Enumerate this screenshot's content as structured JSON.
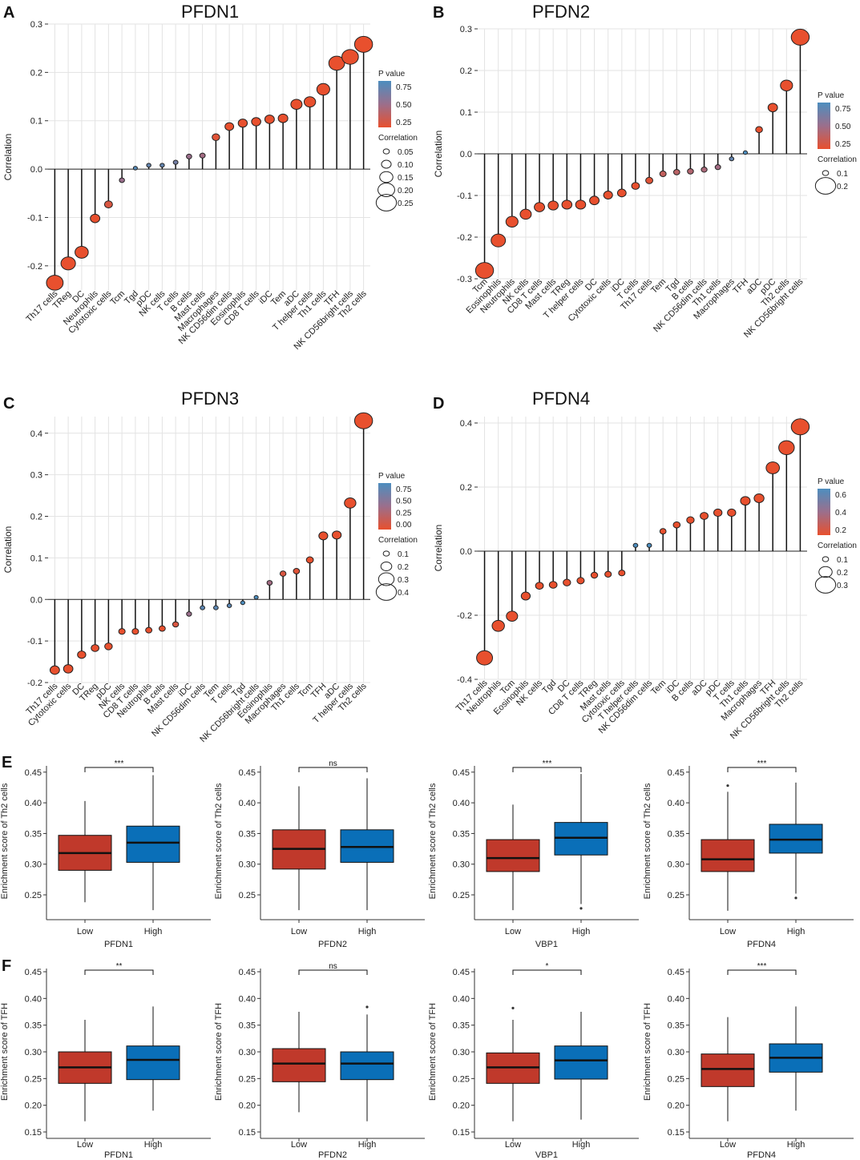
{
  "lollipops": [
    {
      "letter": "A",
      "title": "PFDN1",
      "ylabel": "Correlation",
      "ylim": [
        -0.25,
        0.3
      ],
      "yticks": [
        -0.2,
        -0.1,
        0.0,
        0.1,
        0.2,
        0.3
      ],
      "legend": {
        "p_title": "P value",
        "p_ticks": [
          "0.75",
          "0.50",
          "0.25"
        ],
        "c_title": "Correlation",
        "c_ticks": [
          "0.05",
          "0.10",
          "0.15",
          "0.20",
          "0.25"
        ]
      },
      "chart_data": {
        "type": "lollipop",
        "categories": [
          "Th17 cells",
          "TReg",
          "DC",
          "Neutrophils",
          "Cytotoxic cells",
          "Tcm",
          "Tgd",
          "pDC",
          "NK cells",
          "T cells",
          "B cells",
          "Mast cells",
          "Macrophages",
          "NK CD56dim cells",
          "Eosinophils",
          "CD8 T cells",
          "iDC",
          "Tem",
          "aDC",
          "T helper cells",
          "Th1 cells",
          "TFH",
          "NK CD56bright cells",
          "Th2 cells"
        ],
        "values": [
          -0.235,
          -0.195,
          -0.172,
          -0.102,
          -0.073,
          -0.023,
          0.002,
          0.008,
          0.008,
          0.014,
          0.026,
          0.028,
          0.066,
          0.088,
          0.095,
          0.098,
          0.103,
          0.105,
          0.134,
          0.139,
          0.165,
          0.219,
          0.232,
          0.258
        ],
        "pcolor": [
          0,
          0,
          0,
          0,
          0.1,
          0.5,
          0.95,
          0.85,
          0.85,
          0.75,
          0.5,
          0.45,
          0.05,
          0,
          0,
          0,
          0,
          0,
          0,
          0,
          0,
          0,
          0,
          0
        ]
      }
    },
    {
      "letter": "B",
      "title": "PFDN2",
      "ylabel": "Correlation",
      "ylim": [
        -0.3,
        0.3
      ],
      "yticks": [
        -0.3,
        -0.2,
        -0.1,
        0.0,
        0.1,
        0.2,
        0.3
      ],
      "legend": {
        "p_title": "P value",
        "p_ticks": [
          "0.75",
          "0.50",
          "0.25"
        ],
        "c_title": "Correlation",
        "c_ticks": [
          "0.1",
          "0.2"
        ]
      },
      "chart_data": {
        "type": "lollipop",
        "categories": [
          "Tcm",
          "Eosinophils",
          "Neutrophils",
          "NK cells",
          "CD8 T cells",
          "Mast cells",
          "TReg",
          "T helper cells",
          "DC",
          "Cytotoxic cells",
          "iDC",
          "T cells",
          "Th17 cells",
          "Tem",
          "Tgd",
          "B cells",
          "NK CD56dim cells",
          "Th1 cells",
          "Macrophages",
          "TFH",
          "aDC",
          "pDC",
          "Th2 cells",
          "NK CD56bright cells"
        ],
        "values": [
          -0.28,
          -0.208,
          -0.163,
          -0.145,
          -0.128,
          -0.124,
          -0.122,
          -0.122,
          -0.112,
          -0.099,
          -0.094,
          -0.077,
          -0.064,
          -0.048,
          -0.044,
          -0.042,
          -0.038,
          -0.032,
          -0.012,
          0.003,
          0.058,
          0.111,
          0.164,
          0.28
        ],
        "pcolor": [
          0,
          0,
          0,
          0,
          0,
          0,
          0,
          0,
          0,
          0,
          0,
          0,
          0.05,
          0.25,
          0.3,
          0.35,
          0.4,
          0.45,
          0.85,
          1,
          0,
          0,
          0,
          0
        ]
      }
    },
    {
      "letter": "C",
      "title": "PFDN3",
      "ylabel": "Correlation",
      "ylim": [
        -0.2,
        0.44
      ],
      "yticks": [
        -0.2,
        -0.1,
        0.0,
        0.1,
        0.2,
        0.3,
        0.4
      ],
      "legend": {
        "p_title": "P value",
        "p_ticks": [
          "0.75",
          "0.50",
          "0.25",
          "0.00"
        ],
        "c_title": "Correlation",
        "c_ticks": [
          "0.1",
          "0.2",
          "0.3",
          "0.4"
        ]
      },
      "chart_data": {
        "type": "lollipop",
        "categories": [
          "Th17 cells",
          "Cytotoxic cells",
          "DC",
          "TReg",
          "pDC",
          "NK cells",
          "CD8 T cells",
          "Neutrophils",
          "B cells",
          "Mast cells",
          "iDC",
          "NK CD56dim cells",
          "Tem",
          "T cells",
          "Tgd",
          "NK CD56bright cells",
          "Eosinophils",
          "Macrophages",
          "Th1 cells",
          "Tcm",
          "TFH",
          "aDC",
          "T helper cells",
          "Th2 cells"
        ],
        "values": [
          -0.17,
          -0.167,
          -0.133,
          -0.117,
          -0.113,
          -0.077,
          -0.077,
          -0.074,
          -0.07,
          -0.06,
          -0.035,
          -0.02,
          -0.02,
          -0.015,
          -0.008,
          0.005,
          0.04,
          0.062,
          0.068,
          0.095,
          0.153,
          0.155,
          0.232,
          0.43
        ],
        "pcolor": [
          0,
          0,
          0,
          0,
          0,
          0,
          0,
          0,
          0,
          0.1,
          0.5,
          0.9,
          0.9,
          0.9,
          1,
          1,
          0.45,
          0.1,
          0.05,
          0,
          0,
          0,
          0,
          0
        ]
      }
    },
    {
      "letter": "D",
      "title": "PFDN4",
      "ylabel": "Correlation",
      "ylim": [
        -0.4,
        0.42
      ],
      "yticks": [
        -0.4,
        -0.2,
        0.0,
        0.2,
        0.4
      ],
      "legend": {
        "p_title": "P value",
        "p_ticks": [
          "0.6",
          "0.4",
          "0.2"
        ],
        "c_title": "Correlation",
        "c_ticks": [
          "0.1",
          "0.2",
          "0.3"
        ]
      },
      "chart_data": {
        "type": "lollipop",
        "categories": [
          "Th17 cells",
          "Neutrophils",
          "Tcm",
          "Eosinophils",
          "NK cells",
          "Tgd",
          "DC",
          "CD8 T cells",
          "TReg",
          "Mast cells",
          "Cytotoxic cells",
          "T helper cells",
          "NK CD56dim cells",
          "Tem",
          "iDC",
          "B cells",
          "aDC",
          "pDC",
          "T cells",
          "Th1 cells",
          "Macrophages",
          "TFH",
          "NK CD56bright cells",
          "Th2 cells"
        ],
        "values": [
          -0.333,
          -0.233,
          -0.203,
          -0.14,
          -0.108,
          -0.105,
          -0.098,
          -0.092,
          -0.075,
          -0.072,
          -0.068,
          0.018,
          0.018,
          0.062,
          0.082,
          0.097,
          0.11,
          0.12,
          0.12,
          0.157,
          0.165,
          0.26,
          0.323,
          0.388
        ],
        "pcolor": [
          0,
          0,
          0,
          0,
          0,
          0,
          0,
          0,
          0,
          0,
          0,
          1,
          1,
          0,
          0,
          0,
          0,
          0,
          0,
          0,
          0,
          0,
          0,
          0
        ]
      }
    }
  ],
  "boxrows": [
    {
      "letter": "E",
      "ylabel": "Enrichment score of Th2 cells",
      "ylim": [
        0.22,
        0.455
      ],
      "yticks": [
        "0.25",
        "0.30",
        "0.35",
        "0.40",
        "0.45"
      ],
      "panels": [
        {
          "gene": "PFDN1",
          "sig": "***",
          "categories": [
            "Low",
            "High"
          ],
          "low": {
            "min": 0.238,
            "q1": 0.29,
            "median": 0.318,
            "q3": 0.347,
            "max": 0.403,
            "outliers": []
          },
          "high": {
            "min": 0.225,
            "q1": 0.303,
            "median": 0.335,
            "q3": 0.362,
            "max": 0.445,
            "outliers": []
          }
        },
        {
          "gene": "PFDN2",
          "sig": "ns",
          "categories": [
            "Low",
            "High"
          ],
          "low": {
            "min": 0.225,
            "q1": 0.292,
            "median": 0.325,
            "q3": 0.356,
            "max": 0.427,
            "outliers": []
          },
          "high": {
            "min": 0.225,
            "q1": 0.303,
            "median": 0.328,
            "q3": 0.356,
            "max": 0.44,
            "outliers": []
          }
        },
        {
          "gene": "VBP1",
          "sig": "***",
          "categories": [
            "Low",
            "High"
          ],
          "low": {
            "min": 0.225,
            "q1": 0.288,
            "median": 0.31,
            "q3": 0.34,
            "max": 0.397,
            "outliers": []
          },
          "high": {
            "min": 0.235,
            "q1": 0.315,
            "median": 0.343,
            "q3": 0.368,
            "max": 0.447,
            "outliers": [
              0.228
            ]
          }
        },
        {
          "gene": "PFDN4",
          "sig": "***",
          "categories": [
            "Low",
            "High"
          ],
          "low": {
            "min": 0.224,
            "q1": 0.288,
            "median": 0.308,
            "q3": 0.34,
            "max": 0.418,
            "outliers": [
              0.428
            ]
          },
          "high": {
            "min": 0.252,
            "q1": 0.318,
            "median": 0.34,
            "q3": 0.365,
            "max": 0.433,
            "outliers": [
              0.245
            ]
          }
        }
      ]
    },
    {
      "letter": "F",
      "ylabel": "Enrichment score of TFH",
      "ylim": [
        0.15,
        0.45
      ],
      "yticks": [
        "0.15",
        "0.20",
        "0.25",
        "0.30",
        "0.35",
        "0.40",
        "0.45"
      ],
      "panels": [
        {
          "gene": "PFDN1",
          "sig": "**",
          "categories": [
            "Low",
            "High"
          ],
          "low": {
            "min": 0.17,
            "q1": 0.241,
            "median": 0.271,
            "q3": 0.3,
            "max": 0.36,
            "outliers": []
          },
          "high": {
            "min": 0.19,
            "q1": 0.248,
            "median": 0.285,
            "q3": 0.311,
            "max": 0.385,
            "outliers": []
          }
        },
        {
          "gene": "PFDN2",
          "sig": "ns",
          "categories": [
            "Low",
            "High"
          ],
          "low": {
            "min": 0.187,
            "q1": 0.244,
            "median": 0.278,
            "q3": 0.306,
            "max": 0.375,
            "outliers": []
          },
          "high": {
            "min": 0.17,
            "q1": 0.248,
            "median": 0.278,
            "q3": 0.3,
            "max": 0.37,
            "outliers": [
              0.384
            ]
          }
        },
        {
          "gene": "VBP1",
          "sig": "*",
          "categories": [
            "Low",
            "High"
          ],
          "low": {
            "min": 0.17,
            "q1": 0.241,
            "median": 0.271,
            "q3": 0.298,
            "max": 0.36,
            "outliers": [
              0.382
            ]
          },
          "high": {
            "min": 0.173,
            "q1": 0.249,
            "median": 0.284,
            "q3": 0.311,
            "max": 0.375,
            "outliers": []
          }
        },
        {
          "gene": "PFDN4",
          "sig": "***",
          "categories": [
            "Low",
            "High"
          ],
          "low": {
            "min": 0.17,
            "q1": 0.235,
            "median": 0.268,
            "q3": 0.296,
            "max": 0.365,
            "outliers": []
          },
          "high": {
            "min": 0.19,
            "q1": 0.262,
            "median": 0.289,
            "q3": 0.315,
            "max": 0.385,
            "outliers": []
          }
        }
      ]
    }
  ],
  "colors": {
    "low_box": "#c0392b",
    "high_box": "#0a6fb8",
    "p_low": "#e8502e",
    "p_high": "#4d8ebf",
    "grid": "#e3e3e3"
  }
}
